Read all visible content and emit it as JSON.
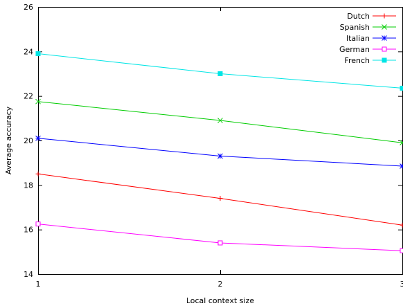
{
  "chart_data": {
    "type": "line",
    "title": "",
    "xlabel": "Local context size",
    "ylabel": "Average accuracy",
    "x": [
      1,
      2,
      3
    ],
    "xticks": [
      "1",
      "2",
      "3"
    ],
    "xlim": [
      1,
      3
    ],
    "ylim": [
      14,
      26
    ],
    "yticks": [
      "14",
      "16",
      "18",
      "20",
      "22",
      "24",
      "26"
    ],
    "grid": false,
    "legend_position": "top-right",
    "series": [
      {
        "name": "Dutch",
        "color": "#ff0000",
        "marker": "plus",
        "values": [
          18.5,
          17.4,
          16.2
        ]
      },
      {
        "name": "Spanish",
        "color": "#00cc00",
        "marker": "cross",
        "values": [
          21.75,
          20.9,
          19.9
        ]
      },
      {
        "name": "Italian",
        "color": "#0000ff",
        "marker": "star",
        "values": [
          20.1,
          19.3,
          18.85
        ]
      },
      {
        "name": "German",
        "color": "#ff00ff",
        "marker": "open-square",
        "values": [
          16.25,
          15.4,
          15.05
        ]
      },
      {
        "name": "French",
        "color": "#00e5e5",
        "marker": "filled-square",
        "values": [
          23.9,
          23.0,
          22.35
        ]
      }
    ]
  }
}
